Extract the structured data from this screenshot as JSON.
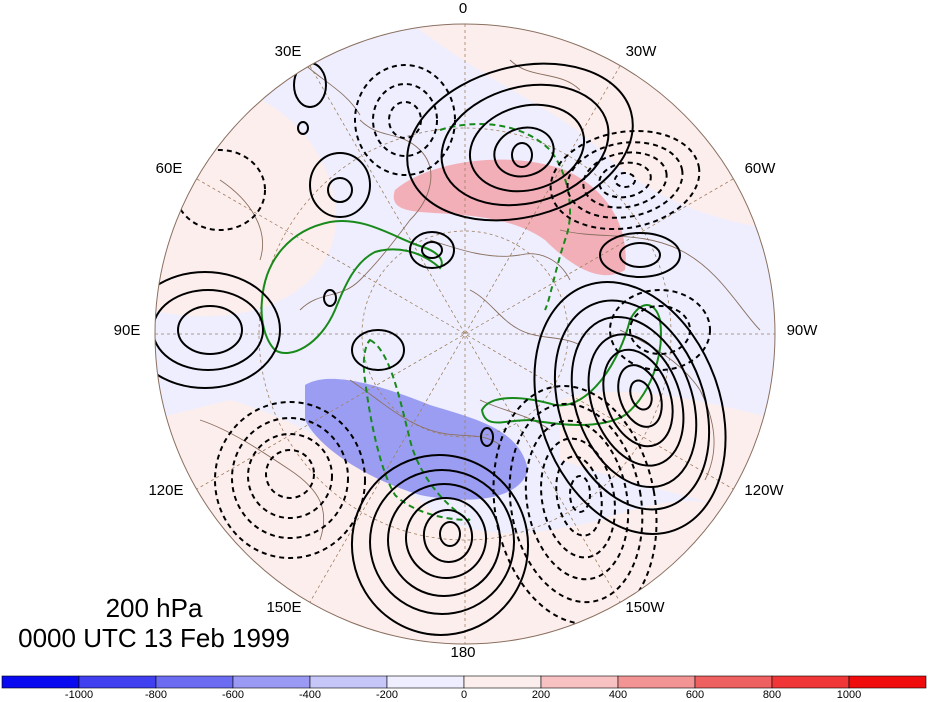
{
  "map": {
    "projection": "north-polar-stereographic",
    "longitude_labels": [
      {
        "id": "0",
        "text": "0"
      },
      {
        "id": "30w",
        "text": "30W"
      },
      {
        "id": "60w",
        "text": "60W"
      },
      {
        "id": "90w",
        "text": "90W"
      },
      {
        "id": "120w",
        "text": "120W"
      },
      {
        "id": "150w",
        "text": "150W"
      },
      {
        "id": "180",
        "text": "180"
      },
      {
        "id": "150e",
        "text": "150E"
      },
      {
        "id": "120e",
        "text": "120E"
      },
      {
        "id": "90e",
        "text": "90E"
      },
      {
        "id": "60e",
        "text": "60E"
      },
      {
        "id": "30e",
        "text": "30E"
      }
    ],
    "level_label": "200 hPa",
    "time_label": "0000 UTC 13 Feb 1999",
    "colors": {
      "positive_shading": "#f3a3ac",
      "negative_shading": "#8c8ef0",
      "green_contour": "#188a1a",
      "coastline": "#8a7060",
      "graticule": "#a08060"
    }
  },
  "colorbar": {
    "tick_labels": [
      "-1000",
      "-800",
      "-600",
      "-400",
      "-200",
      "0",
      "200",
      "400",
      "600",
      "800",
      "1000"
    ],
    "colors": [
      "#0a0af0",
      "#4040f0",
      "#6c6cf2",
      "#9a9af4",
      "#c6c6f8",
      "#eeeefe",
      "#fdeeee",
      "#f8c2c2",
      "#f39494",
      "#ef6060",
      "#f03636",
      "#f00c0c"
    ]
  }
}
